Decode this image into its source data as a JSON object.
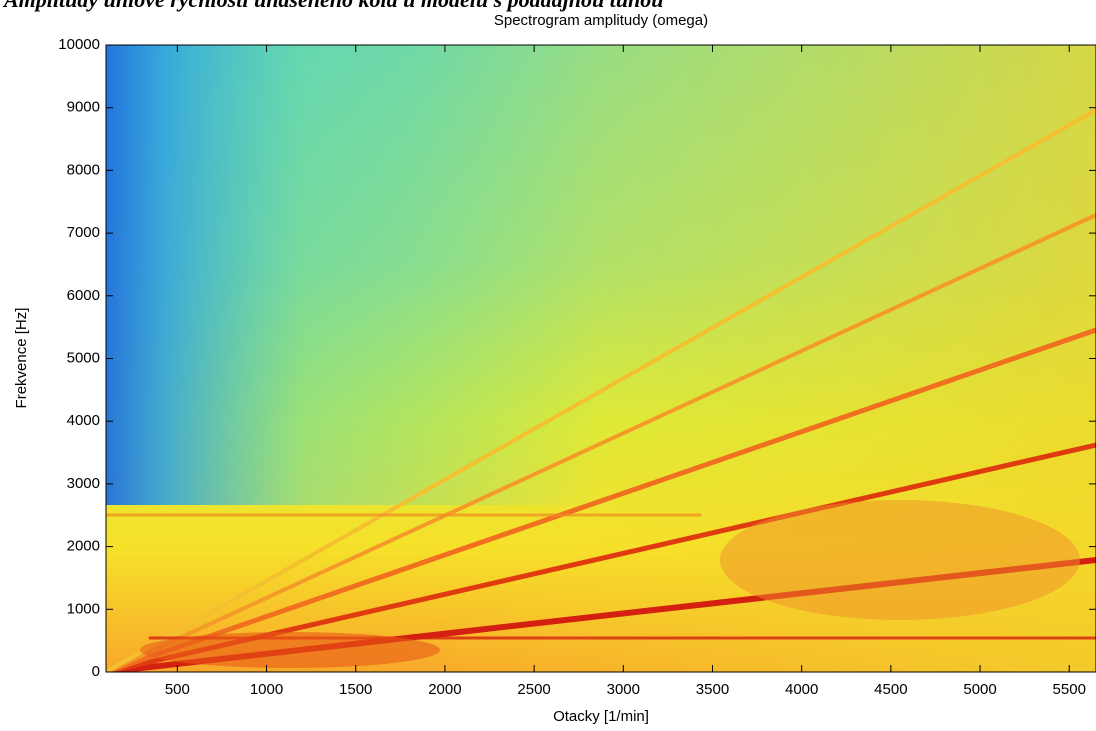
{
  "header": {
    "caption": "Amplitudy úhlové rychlosti unášeného kola u modelu s poddajnou tuhou"
  },
  "chart_data": {
    "type": "spectrogram",
    "title": "Spectrogram amplitudy (omega)",
    "x_label": "Otacky [1/min]",
    "y_label": "Frekvence [Hz]",
    "xlim": [
      100,
      5650
    ],
    "ylim": [
      0,
      10000
    ],
    "xticks": [
      500,
      1000,
      1500,
      2000,
      2500,
      3000,
      3500,
      4000,
      4500,
      5000,
      5500
    ],
    "yticks": [
      0,
      1000,
      2000,
      3000,
      4000,
      5000,
      6000,
      7000,
      8000,
      9000,
      10000
    ],
    "grid": false
  }
}
